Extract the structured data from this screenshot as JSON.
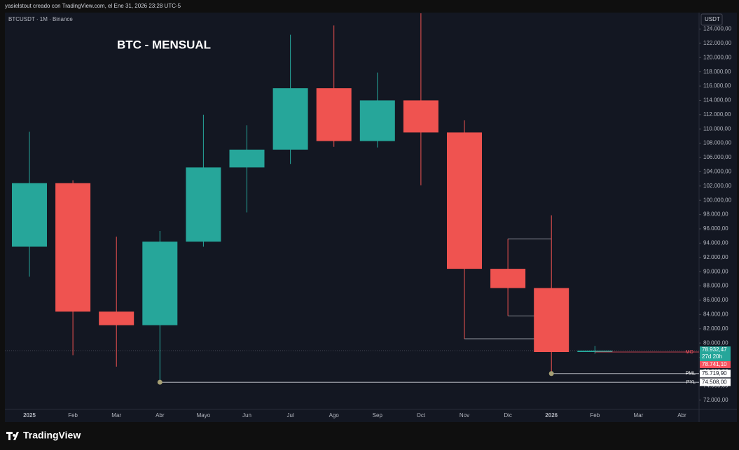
{
  "header": {
    "caption": "yasielstout creado con TradingView.com, el Ene 31, 2026 23:28 UTC-5",
    "symbol": "BTCUSDT · 1M · Binance",
    "currency": "USDT"
  },
  "footer": {
    "brand": "TradingView"
  },
  "chart_data": {
    "type": "candlestick",
    "title": "BTC - MENSUAL",
    "categories": [
      "2025",
      "Feb",
      "Mar",
      "Abr",
      "Mayo",
      "Jun",
      "Jul",
      "Ago",
      "Sep",
      "Oct",
      "Nov",
      "Dic",
      "2026",
      "Feb",
      "Mar",
      "Abr"
    ],
    "open": [
      93500,
      102400,
      84400,
      82500,
      94200,
      104600,
      107100,
      115700,
      108300,
      114000,
      109500,
      90400,
      87700,
      78741.1,
      null,
      null
    ],
    "high": [
      109600,
      102800,
      94900,
      95700,
      112000,
      110500,
      123200,
      124500,
      117900,
      126200,
      111200,
      94600,
      97900,
      79600,
      null,
      null
    ],
    "low": [
      89300,
      78300,
      76700,
      74508,
      93500,
      98300,
      105100,
      107500,
      107400,
      102100,
      80600,
      83800,
      75719.9,
      78500,
      null,
      null
    ],
    "close": [
      102400,
      84400,
      82500,
      94200,
      104600,
      107100,
      115700,
      108300,
      114000,
      109500,
      90400,
      87700,
      78741.1,
      78932.47,
      null,
      null
    ],
    "up_color": "#26a69a",
    "down_color": "#ef5350",
    "ylim": [
      70700,
      126300
    ],
    "yticks": [
      {
        "value": 72000,
        "label": "72.000,00"
      },
      {
        "value": 74000,
        "label": "74.000,00"
      },
      {
        "value": 76000,
        "label": "76.000,00"
      },
      {
        "value": 78000,
        "label": "78.000,00"
      },
      {
        "value": 80000,
        "label": "80.000,00"
      },
      {
        "value": 82000,
        "label": "82.000,00"
      },
      {
        "value": 84000,
        "label": "84.000,00"
      },
      {
        "value": 86000,
        "label": "86.000,00"
      },
      {
        "value": 88000,
        "label": "88.000,00"
      },
      {
        "value": 90000,
        "label": "90.000,00"
      },
      {
        "value": 92000,
        "label": "92.000,00"
      },
      {
        "value": 94000,
        "label": "94.000,00"
      },
      {
        "value": 96000,
        "label": "96.000,00"
      },
      {
        "value": 98000,
        "label": "98.000,00"
      },
      {
        "value": 100000,
        "label": "100.000,00"
      },
      {
        "value": 102000,
        "label": "102.000,00"
      },
      {
        "value": 104000,
        "label": "104.000,00"
      },
      {
        "value": 106000,
        "label": "106.000,00"
      },
      {
        "value": 108000,
        "label": "108.000,00"
      },
      {
        "value": 110000,
        "label": "110.000,00"
      },
      {
        "value": 112000,
        "label": "112.000,00"
      },
      {
        "value": 114000,
        "label": "114.000,00"
      },
      {
        "value": 116000,
        "label": "116.000,00"
      },
      {
        "value": 118000,
        "label": "118.000,00"
      },
      {
        "value": 120000,
        "label": "120.000,00"
      },
      {
        "value": 122000,
        "label": "122.000,00"
      },
      {
        "value": 124000,
        "label": "124.000,00"
      }
    ],
    "current_price": {
      "value": 78932.47,
      "label": "78.932,47",
      "countdown": "27d 20h"
    },
    "price_markers": [
      {
        "name": "MO",
        "value": 78741.1,
        "label": "78.741,10",
        "color": "#f7525f"
      },
      {
        "name": "PML",
        "value": 75719.9,
        "label": "75.719,90",
        "color": "#ffffff"
      },
      {
        "name": "PYL",
        "value": 74508,
        "label": "74.508,00",
        "color": "#ffffff"
      }
    ]
  }
}
